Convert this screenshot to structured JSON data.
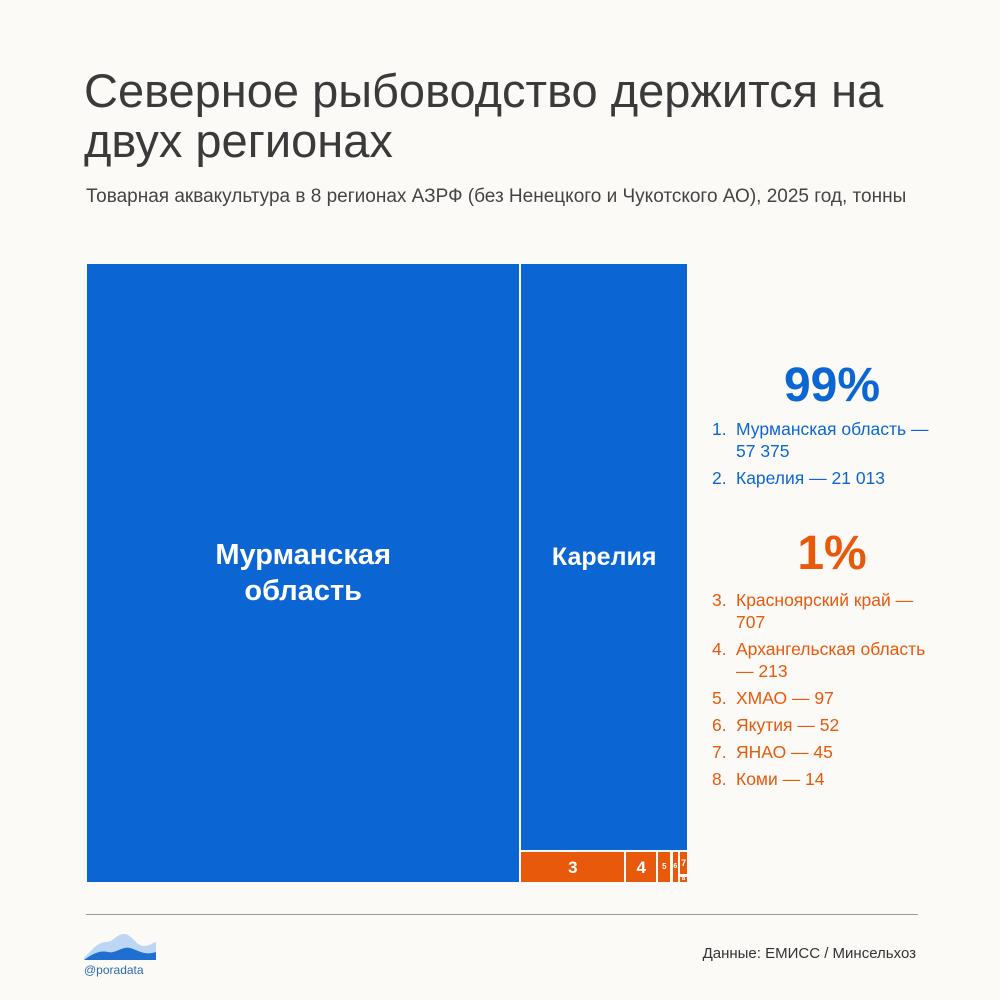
{
  "header": {
    "title": "Северное рыбоводство держится на двух регионах",
    "subtitle": "Товарная аквакультура в 8 регионах АЗРФ (без Ненецкого и Чукотского АО), 2025 год, тонны"
  },
  "chart_data": {
    "type": "treemap",
    "unit": "тонны",
    "colors": {
      "major": "#0b66d4",
      "minor": "#e8590c"
    },
    "items": [
      {
        "rank": 1,
        "name": "Мурманская область",
        "value": 57375,
        "label": "Мурманская\nобласть",
        "group": "major"
      },
      {
        "rank": 2,
        "name": "Карелия",
        "value": 21013,
        "label": "Карелия",
        "group": "major"
      },
      {
        "rank": 3,
        "name": "Красноярский край",
        "value": 707,
        "label": "3",
        "group": "minor"
      },
      {
        "rank": 4,
        "name": "Архангельская область",
        "value": 213,
        "label": "4",
        "group": "minor"
      },
      {
        "rank": 5,
        "name": "ХМАО",
        "value": 97,
        "label": "5",
        "group": "minor"
      },
      {
        "rank": 6,
        "name": "Якутия",
        "value": 52,
        "label": "6",
        "group": "minor"
      },
      {
        "rank": 7,
        "name": "ЯНАО",
        "value": 45,
        "label": "7",
        "group": "minor"
      },
      {
        "rank": 8,
        "name": "Коми",
        "value": 14,
        "label": "8",
        "group": "minor"
      }
    ]
  },
  "legend": {
    "top_percent": "99%",
    "top_items": [
      {
        "num": "1.",
        "text": "Мурманская область — 57 375"
      },
      {
        "num": "2.",
        "text": "Карелия — 21 013"
      }
    ],
    "bottom_percent": "1%",
    "bottom_items": [
      {
        "num": "3.",
        "text": "Красноярский край — 707"
      },
      {
        "num": "4.",
        "text": "Архангельская область — 213"
      },
      {
        "num": "5.",
        "text": "ХМАО — 97"
      },
      {
        "num": "6.",
        "text": "Якутия — 52"
      },
      {
        "num": "7.",
        "text": "ЯНАО — 45"
      },
      {
        "num": "8.",
        "text": "Коми — 14"
      }
    ]
  },
  "footer": {
    "brand": "@poradata",
    "source": "Данные: ЕМИСС / Минсельхоз"
  }
}
